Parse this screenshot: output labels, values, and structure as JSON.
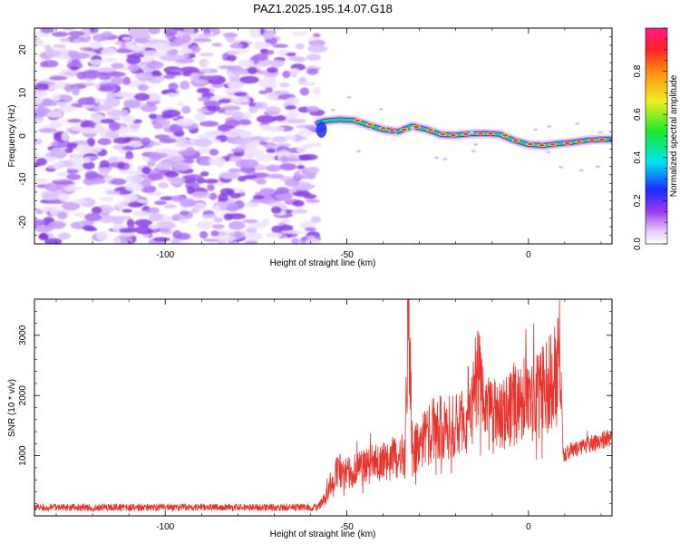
{
  "title": "PAZ1.2025.195.14.07.G18",
  "chart_data": [
    {
      "type": "heatmap",
      "xlabel": "Height of straight line (km)",
      "ylabel": "Frequency (Hz)",
      "xlim": [
        -136,
        23
      ],
      "ylim": [
        -25,
        25
      ],
      "xticks": [
        -100,
        -50,
        0
      ],
      "yticks": [
        -20,
        -10,
        0,
        10,
        20
      ],
      "colorbar": {
        "label": "Normalized spectral amplitude",
        "range": [
          0,
          1
        ],
        "ticks": [
          "0.0",
          "0.2",
          "0.4",
          "0.6",
          "0.8"
        ]
      },
      "noise_region_x": [
        -136,
        -58
      ],
      "signal_track": {
        "x": [
          -58,
          -56,
          -52,
          -48,
          -44,
          -40,
          -36,
          -32,
          -28,
          -24,
          -20,
          -16,
          -12,
          -8,
          -4,
          0,
          4,
          8,
          12,
          16,
          20,
          23
        ],
        "freq": [
          3,
          3.5,
          3.8,
          3.6,
          2.5,
          1.5,
          1.0,
          2.3,
          1.5,
          0.3,
          0.2,
          0.5,
          0.6,
          0.4,
          -1.0,
          -2.0,
          -2.2,
          -1.8,
          -1.5,
          -1.0,
          -0.8,
          -0.8
        ]
      }
    },
    {
      "type": "line",
      "xlabel": "Height of straight line (km)",
      "ylabel": "SNR (10 * v/v)",
      "xlim": [
        -136,
        23
      ],
      "ylim": [
        0,
        3600
      ],
      "xticks": [
        -100,
        -50,
        0
      ],
      "yticks": [
        1000,
        2000,
        3000
      ],
      "color": "#e8342c",
      "envelope": {
        "x": [
          -136,
          -58,
          -56,
          -54,
          -52,
          -50,
          -46,
          -42,
          -38,
          -34,
          -33,
          -32,
          -30,
          -28,
          -26,
          -24,
          -20,
          -16,
          -14,
          -12,
          -8,
          -4,
          0,
          4,
          8,
          9,
          9.5,
          12,
          16,
          20,
          23
        ],
        "y": [
          140,
          140,
          280,
          650,
          750,
          700,
          800,
          880,
          950,
          1000,
          3600,
          980,
          1250,
          1300,
          1450,
          1500,
          1500,
          1550,
          2450,
          1700,
          1650,
          1850,
          1950,
          2050,
          2400,
          2300,
          1000,
          1100,
          1180,
          1250,
          1300
        ]
      }
    }
  ]
}
